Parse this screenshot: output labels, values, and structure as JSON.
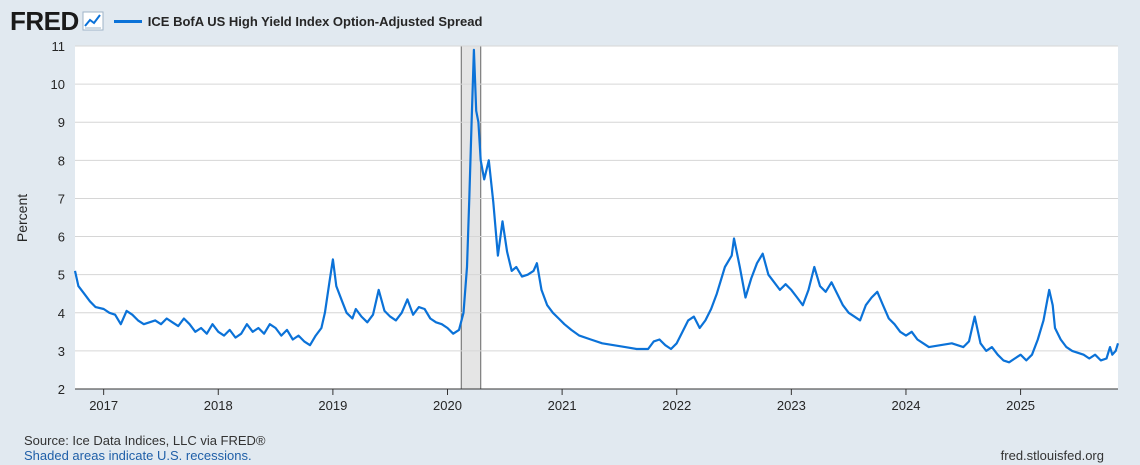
{
  "header": {
    "logo": "FRED",
    "logo_icon": "line-chart-icon",
    "series_label": "ICE BofA US High Yield Index Option-Adjusted Spread"
  },
  "footer": {
    "source": "Source: Ice Data Indices, LLC via FRED®",
    "recession_note": "Shaded areas indicate U.S. recessions.",
    "url": "fred.stlouisfed.org"
  },
  "colors": {
    "line": "#0b72d8",
    "background": "#e1e9f0",
    "plot_bg": "#ffffff",
    "grid": "#d6d6d6",
    "recession": "#e5e5e5"
  },
  "chart_data": {
    "type": "line",
    "title": "ICE BofA US High Yield Index Option-Adjusted Spread",
    "xlabel": "",
    "ylabel": "Percent",
    "xlim": [
      2016.75,
      2025.85
    ],
    "ylim": [
      2,
      11
    ],
    "y_ticks": [
      2,
      3,
      4,
      5,
      6,
      7,
      8,
      9,
      10,
      11
    ],
    "x_ticks": [
      2017,
      2018,
      2019,
      2020,
      2021,
      2022,
      2023,
      2024,
      2025
    ],
    "x_tick_labels": [
      "2017",
      "2018",
      "2019",
      "2020",
      "2021",
      "2022",
      "2023",
      "2024",
      "2025"
    ],
    "grid": true,
    "recessions": [
      {
        "start": 2020.12,
        "end": 2020.29
      }
    ],
    "series": [
      {
        "name": "ICE BofA US High Yield Index Option-Adjusted Spread",
        "points": [
          [
            2016.75,
            5.1
          ],
          [
            2016.78,
            4.7
          ],
          [
            2016.83,
            4.5
          ],
          [
            2016.88,
            4.3
          ],
          [
            2016.93,
            4.15
          ],
          [
            2017.0,
            4.1
          ],
          [
            2017.05,
            4.0
          ],
          [
            2017.1,
            3.95
          ],
          [
            2017.15,
            3.7
          ],
          [
            2017.2,
            4.05
          ],
          [
            2017.25,
            3.95
          ],
          [
            2017.3,
            3.8
          ],
          [
            2017.35,
            3.7
          ],
          [
            2017.4,
            3.75
          ],
          [
            2017.45,
            3.8
          ],
          [
            2017.5,
            3.7
          ],
          [
            2017.55,
            3.85
          ],
          [
            2017.6,
            3.75
          ],
          [
            2017.65,
            3.65
          ],
          [
            2017.7,
            3.85
          ],
          [
            2017.75,
            3.7
          ],
          [
            2017.8,
            3.5
          ],
          [
            2017.85,
            3.6
          ],
          [
            2017.9,
            3.45
          ],
          [
            2017.95,
            3.7
          ],
          [
            2018.0,
            3.5
          ],
          [
            2018.05,
            3.4
          ],
          [
            2018.1,
            3.55
          ],
          [
            2018.15,
            3.35
          ],
          [
            2018.2,
            3.45
          ],
          [
            2018.25,
            3.7
          ],
          [
            2018.3,
            3.5
          ],
          [
            2018.35,
            3.6
          ],
          [
            2018.4,
            3.45
          ],
          [
            2018.45,
            3.7
          ],
          [
            2018.5,
            3.6
          ],
          [
            2018.55,
            3.4
          ],
          [
            2018.6,
            3.55
          ],
          [
            2018.65,
            3.3
          ],
          [
            2018.7,
            3.4
          ],
          [
            2018.75,
            3.25
          ],
          [
            2018.8,
            3.15
          ],
          [
            2018.85,
            3.4
          ],
          [
            2018.9,
            3.6
          ],
          [
            2018.93,
            4.0
          ],
          [
            2018.97,
            4.8
          ],
          [
            2019.0,
            5.4
          ],
          [
            2019.03,
            4.7
          ],
          [
            2019.08,
            4.3
          ],
          [
            2019.12,
            4.0
          ],
          [
            2019.17,
            3.85
          ],
          [
            2019.2,
            4.1
          ],
          [
            2019.25,
            3.9
          ],
          [
            2019.3,
            3.75
          ],
          [
            2019.35,
            3.95
          ],
          [
            2019.4,
            4.6
          ],
          [
            2019.45,
            4.05
          ],
          [
            2019.5,
            3.9
          ],
          [
            2019.55,
            3.8
          ],
          [
            2019.6,
            4.0
          ],
          [
            2019.65,
            4.35
          ],
          [
            2019.7,
            3.95
          ],
          [
            2019.75,
            4.15
          ],
          [
            2019.8,
            4.1
          ],
          [
            2019.85,
            3.85
          ],
          [
            2019.9,
            3.75
          ],
          [
            2019.95,
            3.7
          ],
          [
            2020.0,
            3.6
          ],
          [
            2020.05,
            3.45
          ],
          [
            2020.1,
            3.55
          ],
          [
            2020.14,
            4.0
          ],
          [
            2020.17,
            5.2
          ],
          [
            2020.19,
            7.0
          ],
          [
            2020.21,
            9.0
          ],
          [
            2020.23,
            10.9
          ],
          [
            2020.25,
            9.3
          ],
          [
            2020.27,
            9.0
          ],
          [
            2020.29,
            8.0
          ],
          [
            2020.32,
            7.5
          ],
          [
            2020.36,
            8.0
          ],
          [
            2020.4,
            6.9
          ],
          [
            2020.44,
            5.5
          ],
          [
            2020.48,
            6.4
          ],
          [
            2020.52,
            5.6
          ],
          [
            2020.56,
            5.1
          ],
          [
            2020.6,
            5.2
          ],
          [
            2020.65,
            4.95
          ],
          [
            2020.7,
            5.0
          ],
          [
            2020.75,
            5.1
          ],
          [
            2020.78,
            5.3
          ],
          [
            2020.82,
            4.6
          ],
          [
            2020.87,
            4.2
          ],
          [
            2020.92,
            4.0
          ],
          [
            2020.97,
            3.85
          ],
          [
            2021.02,
            3.7
          ],
          [
            2021.08,
            3.55
          ],
          [
            2021.15,
            3.4
          ],
          [
            2021.25,
            3.3
          ],
          [
            2021.35,
            3.2
          ],
          [
            2021.45,
            3.15
          ],
          [
            2021.55,
            3.1
          ],
          [
            2021.65,
            3.05
          ],
          [
            2021.75,
            3.05
          ],
          [
            2021.8,
            3.25
          ],
          [
            2021.85,
            3.3
          ],
          [
            2021.9,
            3.15
          ],
          [
            2021.95,
            3.05
          ],
          [
            2022.0,
            3.2
          ],
          [
            2022.05,
            3.5
          ],
          [
            2022.1,
            3.8
          ],
          [
            2022.15,
            3.9
          ],
          [
            2022.2,
            3.6
          ],
          [
            2022.25,
            3.8
          ],
          [
            2022.3,
            4.1
          ],
          [
            2022.35,
            4.5
          ],
          [
            2022.42,
            5.2
          ],
          [
            2022.48,
            5.5
          ],
          [
            2022.5,
            5.95
          ],
          [
            2022.55,
            5.2
          ],
          [
            2022.6,
            4.4
          ],
          [
            2022.65,
            4.9
          ],
          [
            2022.7,
            5.3
          ],
          [
            2022.75,
            5.55
          ],
          [
            2022.8,
            5.0
          ],
          [
            2022.85,
            4.8
          ],
          [
            2022.9,
            4.6
          ],
          [
            2022.95,
            4.75
          ],
          [
            2023.0,
            4.6
          ],
          [
            2023.05,
            4.4
          ],
          [
            2023.1,
            4.2
          ],
          [
            2023.15,
            4.6
          ],
          [
            2023.2,
            5.2
          ],
          [
            2023.25,
            4.7
          ],
          [
            2023.3,
            4.55
          ],
          [
            2023.35,
            4.8
          ],
          [
            2023.4,
            4.5
          ],
          [
            2023.45,
            4.2
          ],
          [
            2023.5,
            4.0
          ],
          [
            2023.55,
            3.9
          ],
          [
            2023.6,
            3.8
          ],
          [
            2023.65,
            4.2
          ],
          [
            2023.7,
            4.4
          ],
          [
            2023.75,
            4.55
          ],
          [
            2023.8,
            4.2
          ],
          [
            2023.85,
            3.85
          ],
          [
            2023.9,
            3.7
          ],
          [
            2023.95,
            3.5
          ],
          [
            2024.0,
            3.4
          ],
          [
            2024.05,
            3.5
          ],
          [
            2024.1,
            3.3
          ],
          [
            2024.15,
            3.2
          ],
          [
            2024.2,
            3.1
          ],
          [
            2024.3,
            3.15
          ],
          [
            2024.4,
            3.2
          ],
          [
            2024.5,
            3.1
          ],
          [
            2024.55,
            3.25
          ],
          [
            2024.6,
            3.9
          ],
          [
            2024.65,
            3.2
          ],
          [
            2024.7,
            3.0
          ],
          [
            2024.75,
            3.1
          ],
          [
            2024.8,
            2.9
          ],
          [
            2024.85,
            2.75
          ],
          [
            2024.9,
            2.7
          ],
          [
            2024.95,
            2.8
          ],
          [
            2025.0,
            2.9
          ],
          [
            2025.05,
            2.75
          ],
          [
            2025.1,
            2.9
          ],
          [
            2025.15,
            3.3
          ],
          [
            2025.2,
            3.8
          ],
          [
            2025.25,
            4.6
          ],
          [
            2025.28,
            4.2
          ],
          [
            2025.3,
            3.6
          ],
          [
            2025.35,
            3.3
          ],
          [
            2025.4,
            3.1
          ],
          [
            2025.45,
            3.0
          ],
          [
            2025.5,
            2.95
          ],
          [
            2025.55,
            2.9
          ],
          [
            2025.6,
            2.8
          ],
          [
            2025.65,
            2.9
          ],
          [
            2025.7,
            2.75
          ],
          [
            2025.75,
            2.8
          ],
          [
            2025.78,
            3.1
          ],
          [
            2025.8,
            2.9
          ],
          [
            2025.83,
            3.0
          ],
          [
            2025.85,
            3.2
          ]
        ]
      }
    ]
  }
}
